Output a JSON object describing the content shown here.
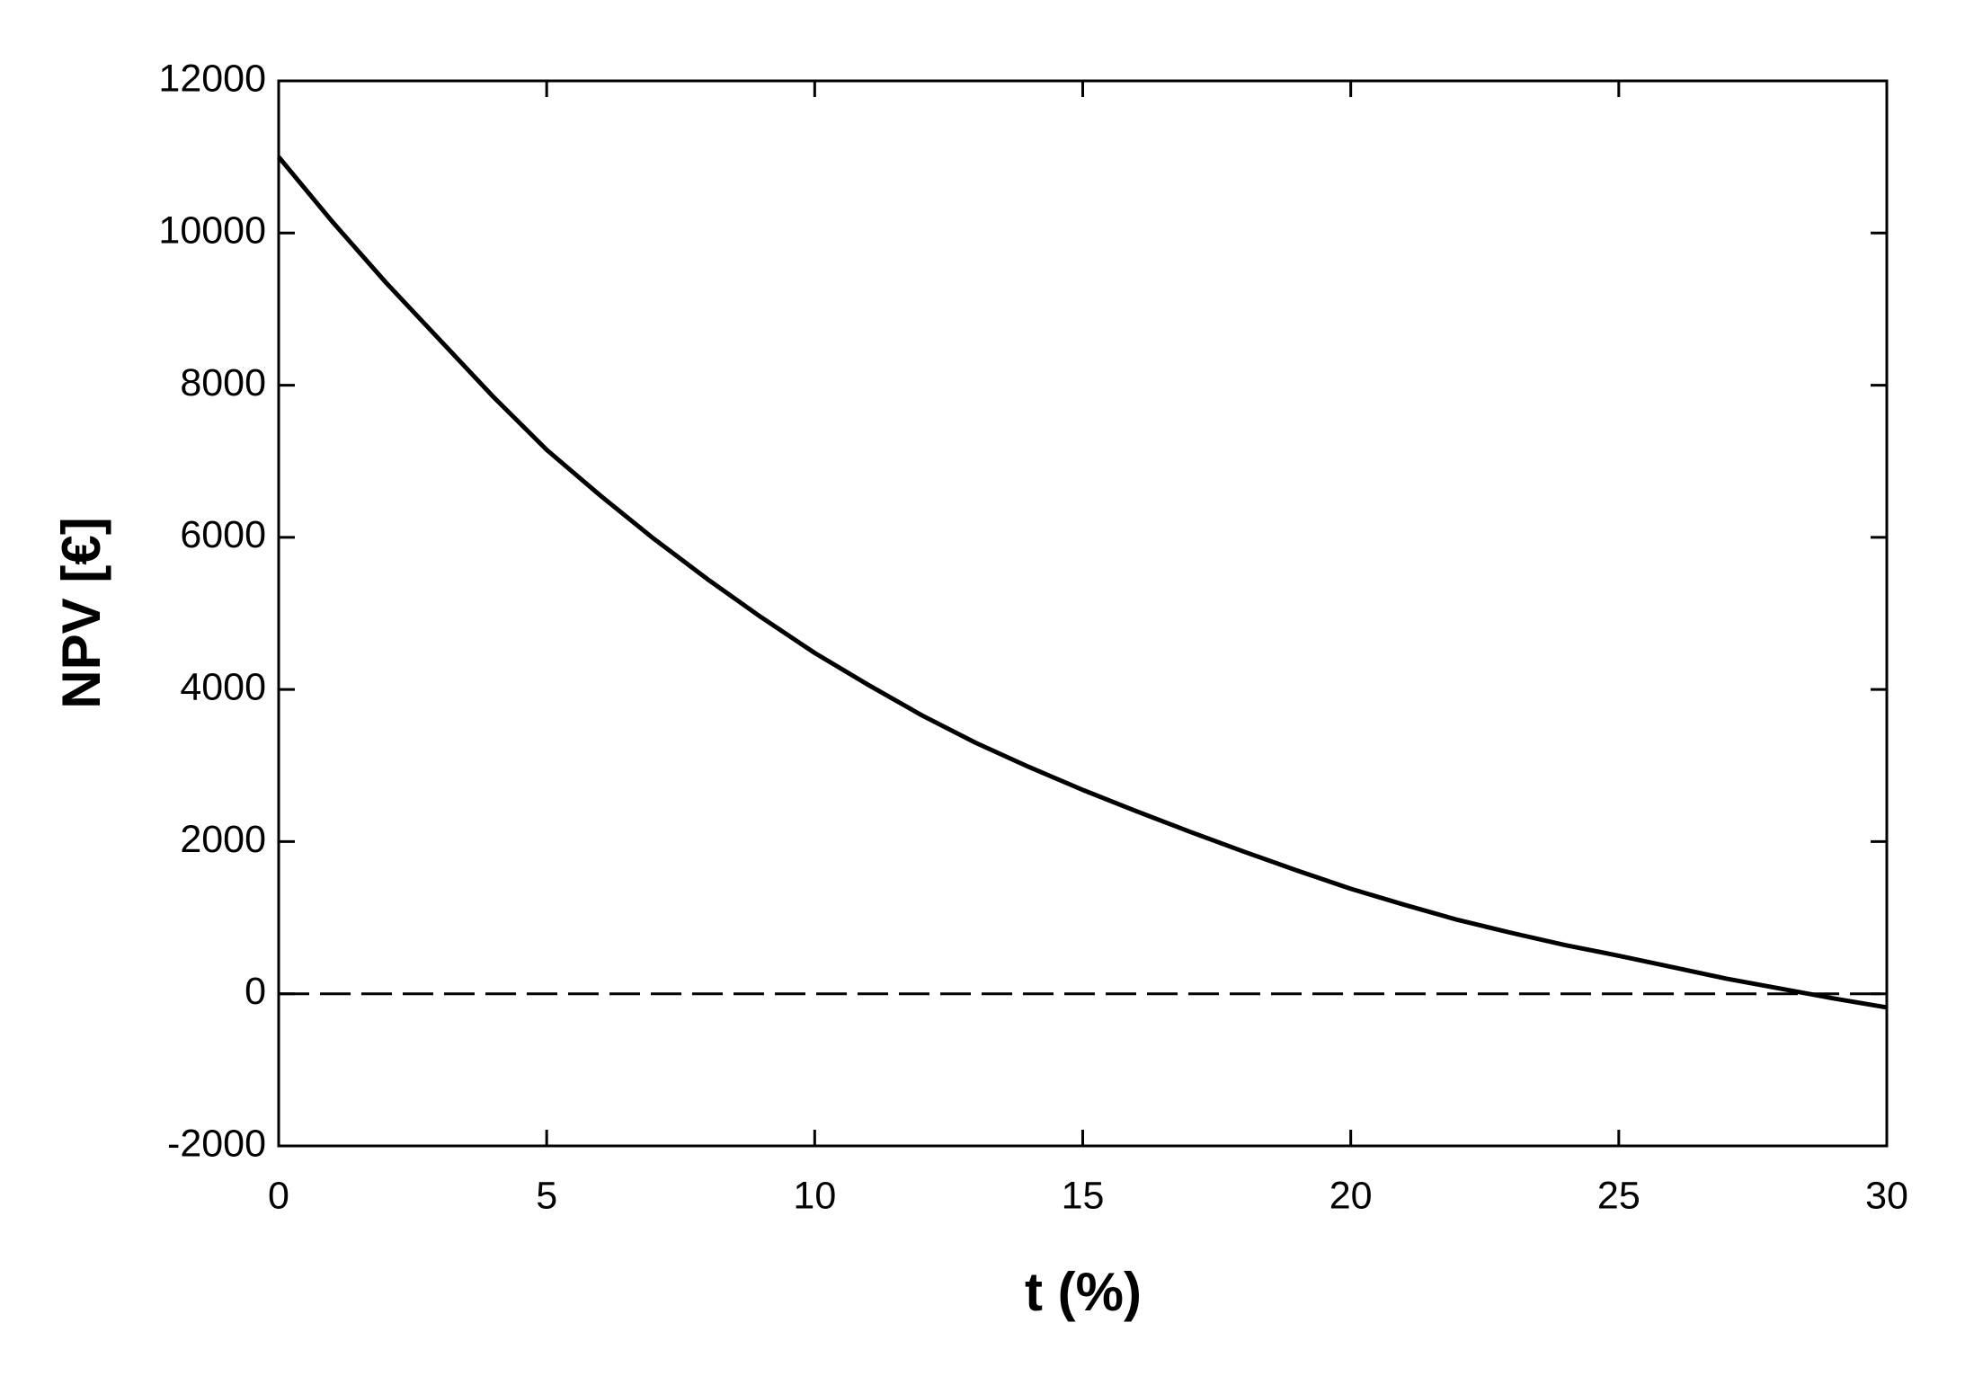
{
  "chart_data": {
    "type": "line",
    "x_label": "t (%)",
    "y_label": "NPV  [€]",
    "x": [
      0,
      1,
      2,
      3,
      4,
      5,
      6,
      7,
      8,
      9,
      10,
      11,
      12,
      13,
      14,
      15,
      16,
      17,
      18,
      19,
      20,
      21,
      22,
      23,
      24,
      25,
      26,
      27,
      28,
      29,
      30
    ],
    "series": [
      {
        "color": "#000000",
        "values": [
          11000,
          10150,
          9350,
          8600,
          7850,
          7150,
          6550,
          5980,
          5450,
          4950,
          4480,
          4060,
          3660,
          3300,
          2980,
          2680,
          2400,
          2130,
          1870,
          1620,
          1380,
          1170,
          970,
          800,
          640,
          500,
          350,
          200,
          70,
          -60,
          -180
        ]
      }
    ],
    "reference_lines": [
      {
        "y": 0,
        "style": "dashed"
      }
    ],
    "xlim": [
      0,
      30
    ],
    "xticks": [
      0,
      5,
      10,
      15,
      20,
      25,
      30
    ],
    "ylim": [
      -2000,
      12000
    ],
    "yticks": [
      -2000,
      0,
      2000,
      4000,
      6000,
      8000,
      10000,
      12000
    ],
    "grid": false
  }
}
